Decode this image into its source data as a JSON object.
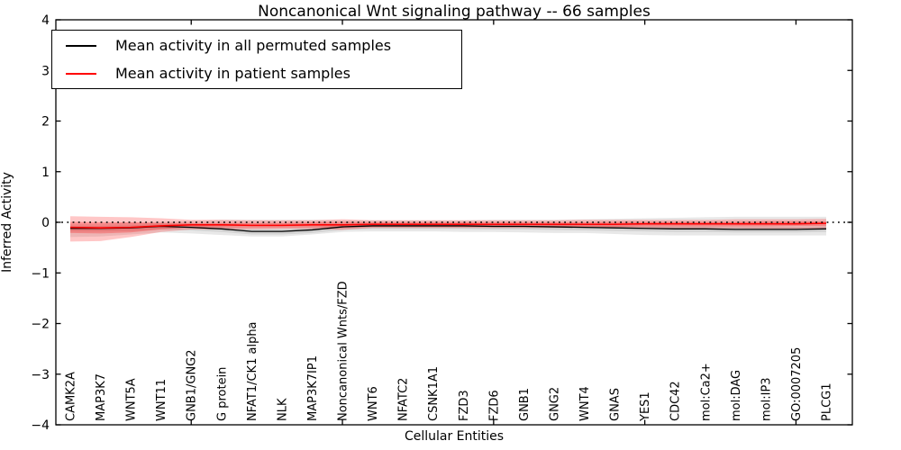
{
  "chart_data": {
    "type": "line",
    "title": "Noncanonical Wnt signaling pathway -- 66 samples",
    "xlabel": "Cellular Entities",
    "ylabel": "Inferred Activity",
    "ylim": [
      -4,
      4
    ],
    "y_ticks": [
      4,
      3,
      2,
      1,
      0,
      -1,
      -2,
      -3,
      -4
    ],
    "x_tick_category_indices": [
      4,
      9,
      14,
      19,
      24
    ],
    "grid": false,
    "legend_position": "upper left",
    "zero_reference_line": {
      "y": 0,
      "style": "dotted",
      "color": "#000000"
    },
    "categories": [
      "CAMK2A",
      "MAP3K7",
      "WNT5A",
      "WNT11",
      "GNB1/GNG2",
      "G protein",
      "NFAT1/CK1 alpha",
      "NLK",
      "MAP3K7IP1",
      "Noncanonical Wnts/FZD",
      "WNT6",
      "NFATC2",
      "CSNK1A1",
      "FZD3",
      "FZD6",
      "GNB1",
      "GNG2",
      "WNT4",
      "GNAS",
      "YES1",
      "CDC42",
      "mol:Ca2+",
      "mol:DAG",
      "mol:IP3",
      "GO:0007205",
      "PLCG1"
    ],
    "series": [
      {
        "name": "Mean activity in all permuted samples",
        "color": "#000000",
        "line_width": 1.3,
        "values": [
          -0.12,
          -0.12,
          -0.11,
          -0.08,
          -0.1,
          -0.13,
          -0.18,
          -0.18,
          -0.15,
          -0.09,
          -0.07,
          -0.07,
          -0.07,
          -0.07,
          -0.08,
          -0.08,
          -0.09,
          -0.1,
          -0.11,
          -0.12,
          -0.13,
          -0.13,
          -0.14,
          -0.14,
          -0.14,
          -0.13
        ]
      },
      {
        "name": "Mean activity in patient samples",
        "color": "#ff0000",
        "line_width": 1.6,
        "values": [
          -0.1,
          -0.11,
          -0.1,
          -0.07,
          -0.05,
          -0.05,
          -0.06,
          -0.06,
          -0.05,
          -0.05,
          -0.04,
          -0.04,
          -0.04,
          -0.04,
          -0.04,
          -0.04,
          -0.04,
          -0.04,
          -0.04,
          -0.03,
          -0.03,
          -0.03,
          -0.03,
          -0.03,
          -0.03,
          -0.02
        ]
      }
    ],
    "bands": [
      {
        "name": "permuted-outer-band",
        "color": "#000000",
        "opacity": 0.09,
        "hi": [
          -0.04,
          -0.03,
          -0.01,
          0.01,
          0.03,
          0.05,
          0.05,
          0.05,
          0.05,
          0.04,
          0.04,
          0.04,
          0.04,
          0.04,
          0.05,
          0.05,
          0.05,
          0.06,
          0.07,
          0.08,
          0.09,
          0.1,
          0.11,
          0.11,
          0.11,
          0.11
        ],
        "lo": [
          -0.29,
          -0.28,
          -0.24,
          -0.2,
          -0.22,
          -0.25,
          -0.28,
          -0.28,
          -0.24,
          -0.19,
          -0.18,
          -0.18,
          -0.18,
          -0.19,
          -0.19,
          -0.2,
          -0.21,
          -0.21,
          -0.23,
          -0.25,
          -0.26,
          -0.26,
          -0.26,
          -0.26,
          -0.26,
          -0.26
        ]
      },
      {
        "name": "permuted-inner-band",
        "color": "#000000",
        "opacity": 0.09,
        "hi": [
          -0.07,
          -0.07,
          -0.06,
          -0.03,
          -0.05,
          -0.08,
          -0.13,
          -0.13,
          -0.1,
          -0.04,
          -0.02,
          -0.02,
          -0.02,
          -0.02,
          -0.03,
          -0.03,
          -0.04,
          -0.05,
          -0.06,
          -0.07,
          -0.08,
          -0.08,
          -0.09,
          -0.09,
          -0.09,
          -0.08
        ],
        "lo": [
          -0.18,
          -0.18,
          -0.17,
          -0.14,
          -0.16,
          -0.19,
          -0.24,
          -0.24,
          -0.21,
          -0.15,
          -0.13,
          -0.13,
          -0.13,
          -0.13,
          -0.14,
          -0.14,
          -0.15,
          -0.16,
          -0.17,
          -0.18,
          -0.19,
          -0.19,
          -0.2,
          -0.2,
          -0.2,
          -0.19
        ]
      },
      {
        "name": "patient-outer-band",
        "color": "#ff0000",
        "opacity": 0.22,
        "hi": [
          0.12,
          0.11,
          0.1,
          0.08,
          0.05,
          0.05,
          0.04,
          0.04,
          0.04,
          0.06,
          0.04,
          0.04,
          0.04,
          0.04,
          0.04,
          0.04,
          0.04,
          0.05,
          0.05,
          0.05,
          0.05,
          0.05,
          0.06,
          0.06,
          0.06,
          0.07
        ],
        "lo": [
          -0.38,
          -0.37,
          -0.29,
          -0.19,
          -0.14,
          -0.14,
          -0.14,
          -0.13,
          -0.13,
          -0.15,
          -0.11,
          -0.11,
          -0.11,
          -0.11,
          -0.11,
          -0.11,
          -0.11,
          -0.11,
          -0.12,
          -0.12,
          -0.12,
          -0.12,
          -0.12,
          -0.13,
          -0.13,
          -0.13
        ],
        "hi2": [
          0.12,
          0.11,
          0.1,
          0.08,
          0.05,
          0.05,
          0.04,
          0.04,
          0.04,
          0.06,
          0.04,
          0.04,
          0.04,
          0.04,
          0.04,
          0.04,
          0.04,
          0.05,
          0.05,
          0.05,
          0.05,
          0.05,
          0.06,
          0.06,
          0.06,
          0.07
        ]
      },
      {
        "name": "patient-inner-band",
        "color": "#ff0000",
        "opacity": 0.25,
        "hi": [
          0.01,
          0.0,
          0.0,
          -0.01,
          -0.01,
          -0.01,
          -0.01,
          -0.01,
          0.0,
          0.01,
          0.0,
          0.0,
          0.0,
          0.0,
          0.0,
          0.0,
          0.0,
          0.0,
          0.01,
          0.01,
          0.01,
          0.01,
          0.01,
          0.02,
          0.02,
          0.02
        ],
        "lo": [
          -0.21,
          -0.22,
          -0.2,
          -0.14,
          -0.1,
          -0.1,
          -0.11,
          -0.11,
          -0.1,
          -0.11,
          -0.09,
          -0.09,
          -0.09,
          -0.09,
          -0.09,
          -0.09,
          -0.09,
          -0.09,
          -0.09,
          -0.08,
          -0.08,
          -0.08,
          -0.08,
          -0.08,
          -0.07,
          -0.07
        ]
      }
    ]
  }
}
